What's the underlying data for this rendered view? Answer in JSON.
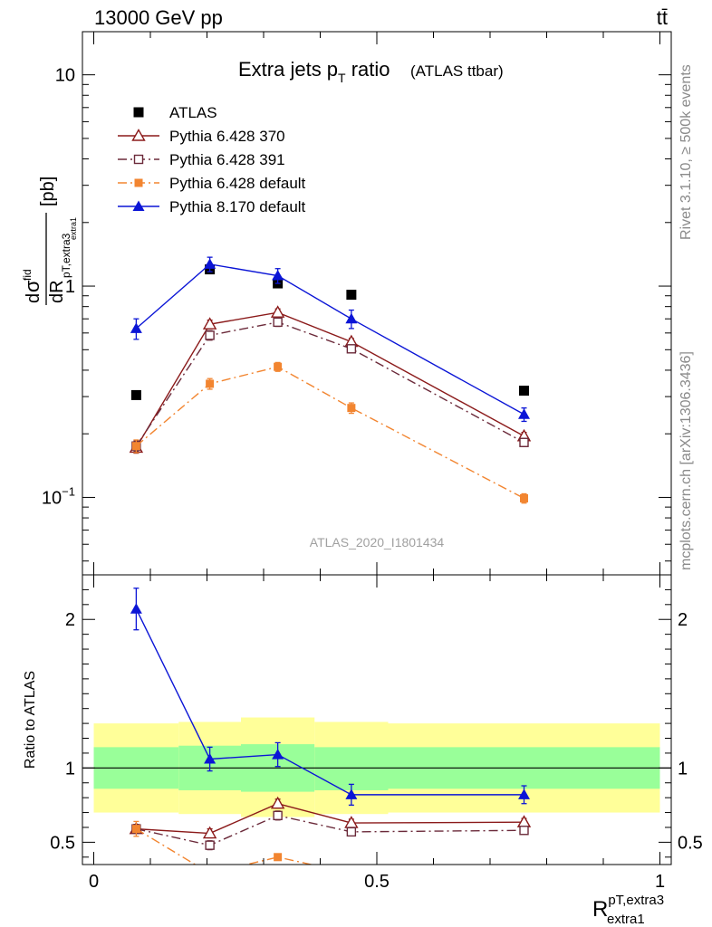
{
  "header": {
    "left": "13000 GeV pp",
    "right": "tt̄"
  },
  "sidebar": {
    "top": "Rivet 3.1.10, ≥ 500k events",
    "bottom": "mcplots.cern.ch [arXiv:1306.3436]"
  },
  "chart_data": [
    {
      "type": "scatter",
      "title": "Extra jets p",
      "title_sub": "T",
      "title_rest": " ratio",
      "title_note": "(ATLAS ttbar)",
      "ylabel": "[pb]",
      "watermark": "ATLAS_2020_I1801434",
      "yscale": "log",
      "ylim": [
        0.043,
        16
      ],
      "xlim": [
        -0.02,
        1.02
      ],
      "yticks": [
        {
          "value": 0.1,
          "label": "10",
          "sup": "−1"
        },
        {
          "value": 1,
          "label": "1",
          "sup": ""
        },
        {
          "value": 10,
          "label": "10",
          "sup": ""
        }
      ],
      "x": [
        0.075,
        0.205,
        0.325,
        0.455,
        0.76
      ],
      "series": [
        {
          "name": "ATLAS",
          "color": "#000000",
          "marker": "square-filled",
          "line": "none",
          "values": [
            0.305,
            1.2,
            1.03,
            0.91,
            0.32
          ],
          "err": [
            0,
            0,
            0,
            0,
            0
          ]
        },
        {
          "name": "Pythia 6.428 370",
          "color": "#8b1a1a",
          "marker": "triangle-open",
          "line": "solid",
          "values": [
            0.172,
            0.66,
            0.75,
            0.545,
            0.195
          ],
          "err": [
            0.01,
            0.03,
            0.03,
            0.02,
            0.008
          ]
        },
        {
          "name": "Pythia 6.428 391",
          "color": "#6b2a3a",
          "marker": "square-open",
          "line": "dashdot",
          "values": [
            0.175,
            0.585,
            0.675,
            0.505,
            0.182
          ],
          "err": [
            0.01,
            0.03,
            0.03,
            0.02,
            0.008
          ]
        },
        {
          "name": "Pythia 6.428 default",
          "color": "#f28530",
          "marker": "square-filled-small",
          "line": "dashdot",
          "values": [
            0.175,
            0.345,
            0.415,
            0.265,
            0.099
          ],
          "err": [
            0.012,
            0.02,
            0.02,
            0.015,
            0.005
          ]
        },
        {
          "name": "Pythia 8.170 default",
          "color": "#0b15d6",
          "marker": "triangle-filled",
          "line": "solid",
          "values": [
            0.63,
            1.27,
            1.12,
            0.7,
            0.247
          ],
          "err": [
            0.07,
            0.1,
            0.09,
            0.07,
            0.018
          ]
        }
      ]
    },
    {
      "type": "scatter",
      "ylabel": "Ratio to ATLAS",
      "xlabel": "R",
      "xlabel_sup": "pT,extra3",
      "xlabel_sub": "extra1",
      "ylim": [
        0.35,
        2.3
      ],
      "xlim": [
        -0.02,
        1.02
      ],
      "xticks": [
        {
          "value": 0,
          "label": "0"
        },
        {
          "value": 0.5,
          "label": "0.5"
        },
        {
          "value": 1,
          "label": "1"
        }
      ],
      "yticks": [
        {
          "value": 0.5,
          "label": "0.5"
        },
        {
          "value": 1,
          "label": "1"
        },
        {
          "value": 2,
          "label": "2"
        }
      ],
      "bands": {
        "edges": [
          0,
          0.15,
          0.26,
          0.39,
          0.52,
          1.0
        ],
        "yellow": [
          [
            0.7,
            1.3
          ],
          [
            0.69,
            1.31
          ],
          [
            0.67,
            1.34
          ],
          [
            0.69,
            1.31
          ],
          [
            0.7,
            1.3
          ]
        ],
        "green": [
          [
            0.86,
            1.14
          ],
          [
            0.85,
            1.15
          ],
          [
            0.84,
            1.16
          ],
          [
            0.85,
            1.14
          ],
          [
            0.86,
            1.14
          ]
        ]
      },
      "x": [
        0.075,
        0.205,
        0.325,
        0.455,
        0.76
      ],
      "series": [
        {
          "name": "Pythia 6.428 370",
          "color": "#8b1a1a",
          "marker": "triangle-open",
          "line": "solid",
          "values": [
            0.59,
            0.56,
            0.76,
            0.63,
            0.635
          ],
          "err": [
            0.03,
            0.03,
            0.03,
            0.025,
            0.025
          ]
        },
        {
          "name": "Pythia 6.428 391",
          "color": "#6b2a3a",
          "marker": "square-open",
          "line": "dashdot",
          "values": [
            0.59,
            0.48,
            0.68,
            0.57,
            0.58
          ],
          "err": [
            0.03,
            0.03,
            0.03,
            0.025,
            0.025
          ]
        },
        {
          "name": "Pythia 6.428 default",
          "color": "#f28530",
          "marker": "square-filled-small",
          "line": "dashdot",
          "values": [
            0.59,
            0.29,
            0.4,
            0.29,
            0.31
          ],
          "err": [
            0.05,
            0.02,
            0.02,
            0.02,
            0.02
          ]
        },
        {
          "name": "Pythia 8.170 default",
          "color": "#0b15d6",
          "marker": "triangle-filled",
          "line": "solid",
          "values": [
            2.07,
            1.06,
            1.09,
            0.82,
            0.82
          ],
          "err": [
            0.14,
            0.08,
            0.08,
            0.07,
            0.06
          ]
        }
      ]
    }
  ]
}
